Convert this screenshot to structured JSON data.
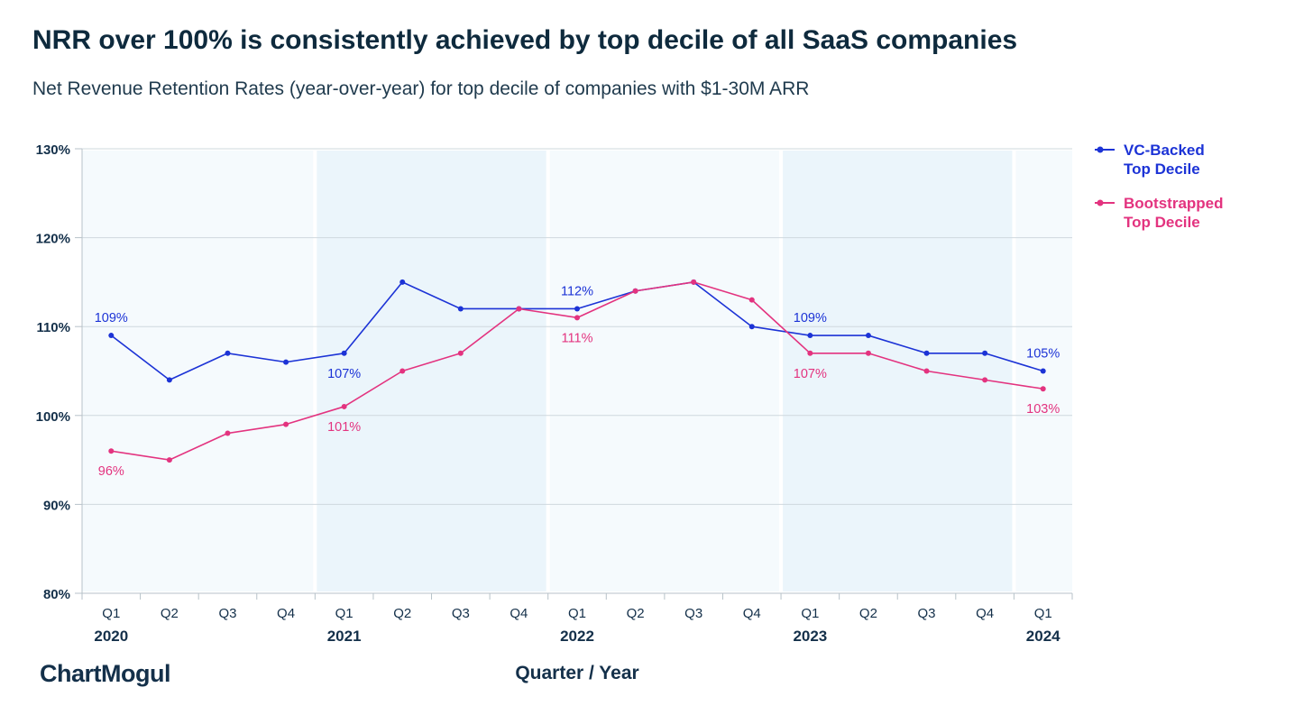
{
  "title": "NRR over 100% is consistently achieved by top decile of all SaaS companies",
  "subtitle": "Net Revenue Retention Rates (year-over-year) for top decile of companies with $1-30M ARR",
  "logo": "ChartMogul",
  "colors": {
    "vc": "#1c33d6",
    "boot": "#e3337f",
    "band_light": "#f5fafd",
    "band_dark": "#ebf5fb"
  },
  "chart_data": {
    "type": "line",
    "title": "NRR over 100% is consistently achieved by top decile of all SaaS companies",
    "subtitle": "Net Revenue Retention Rates (year-over-year) for top decile of companies with $1-30M ARR",
    "xlabel": "Quarter / Year",
    "ylabel": "",
    "ylim": [
      80,
      130
    ],
    "yticks": [
      "80%",
      "90%",
      "100%",
      "110%",
      "120%",
      "130%"
    ],
    "categories": [
      "Q1",
      "Q2",
      "Q3",
      "Q4",
      "Q1",
      "Q2",
      "Q3",
      "Q4",
      "Q1",
      "Q2",
      "Q3",
      "Q4",
      "Q1",
      "Q2",
      "Q3",
      "Q4",
      "Q1"
    ],
    "years": [
      {
        "label": "2020",
        "index": 0
      },
      {
        "label": "2021",
        "index": 4
      },
      {
        "label": "2022",
        "index": 8
      },
      {
        "label": "2023",
        "index": 12
      },
      {
        "label": "2024",
        "index": 16
      }
    ],
    "grid": true,
    "legend_position": "top-right",
    "series": [
      {
        "name": "VC-Backed\nTop Decile",
        "color": "#1c33d6",
        "values": [
          109,
          104,
          107,
          106,
          107,
          115,
          112,
          112,
          112,
          114,
          115,
          110,
          109,
          109,
          107,
          107,
          105
        ],
        "labels": [
          {
            "index": 0,
            "text": "109%",
            "pos": "above"
          },
          {
            "index": 4,
            "text": "107%",
            "pos": "below"
          },
          {
            "index": 8,
            "text": "112%",
            "pos": "above"
          },
          {
            "index": 12,
            "text": "109%",
            "pos": "above"
          },
          {
            "index": 16,
            "text": "105%",
            "pos": "above"
          }
        ]
      },
      {
        "name": "Bootstrapped\nTop Decile",
        "color": "#e3337f",
        "values": [
          96,
          95,
          98,
          99,
          101,
          105,
          107,
          112,
          111,
          114,
          115,
          113,
          107,
          107,
          105,
          104,
          103
        ],
        "labels": [
          {
            "index": 0,
            "text": "96%",
            "pos": "below"
          },
          {
            "index": 4,
            "text": "101%",
            "pos": "below"
          },
          {
            "index": 8,
            "text": "111%",
            "pos": "below"
          },
          {
            "index": 12,
            "text": "107%",
            "pos": "below"
          },
          {
            "index": 16,
            "text": "103%",
            "pos": "below"
          }
        ]
      }
    ]
  }
}
